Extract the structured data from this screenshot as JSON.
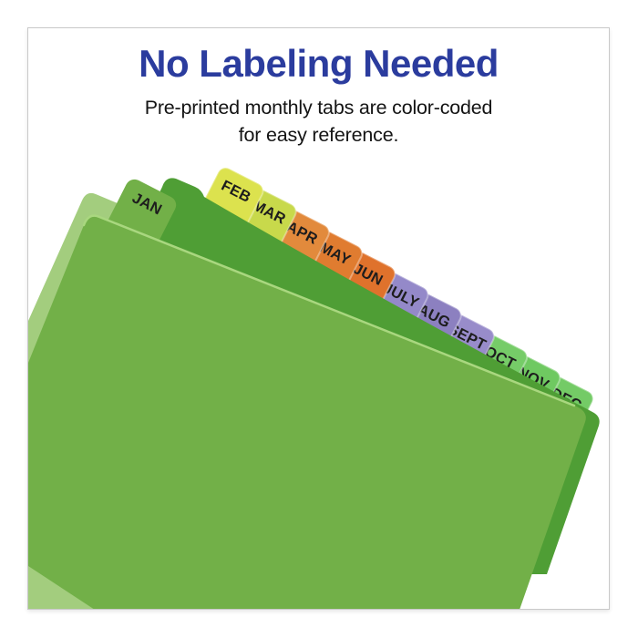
{
  "title": {
    "text": "No Labeling Needed",
    "color": "#2b3c9e"
  },
  "subtitle": {
    "line1": "Pre-printed monthly tabs are color-coded",
    "line2": "for easy reference."
  },
  "divider_stack": {
    "front_sheet_color": "#72b048",
    "dark_sheet_color": "#4f9e35",
    "light_sheet_color": "#a3cd7e",
    "edge_highlight_color": "#a9d77f",
    "tab_text_color": "#1d1d1d",
    "tab_rim_color": "rgba(255,255,255,0.35)",
    "tabs": [
      {
        "label": "JAN",
        "color": "#72b048"
      },
      {
        "label": "FEB",
        "color": "#dce24e"
      },
      {
        "label": "MAR",
        "color": "#c8d94b"
      },
      {
        "label": "APR",
        "color": "#e28a3c"
      },
      {
        "label": "MAY",
        "color": "#e07c30"
      },
      {
        "label": "JUN",
        "color": "#df722c"
      },
      {
        "label": "JULY",
        "color": "#9489c9"
      },
      {
        "label": "AUG",
        "color": "#8c80c0"
      },
      {
        "label": "SEPT",
        "color": "#988cca"
      },
      {
        "label": "OCT",
        "color": "#76cc68"
      },
      {
        "label": "NOV",
        "color": "#6fc961"
      },
      {
        "label": "DEC",
        "color": "#74cb66"
      }
    ]
  }
}
